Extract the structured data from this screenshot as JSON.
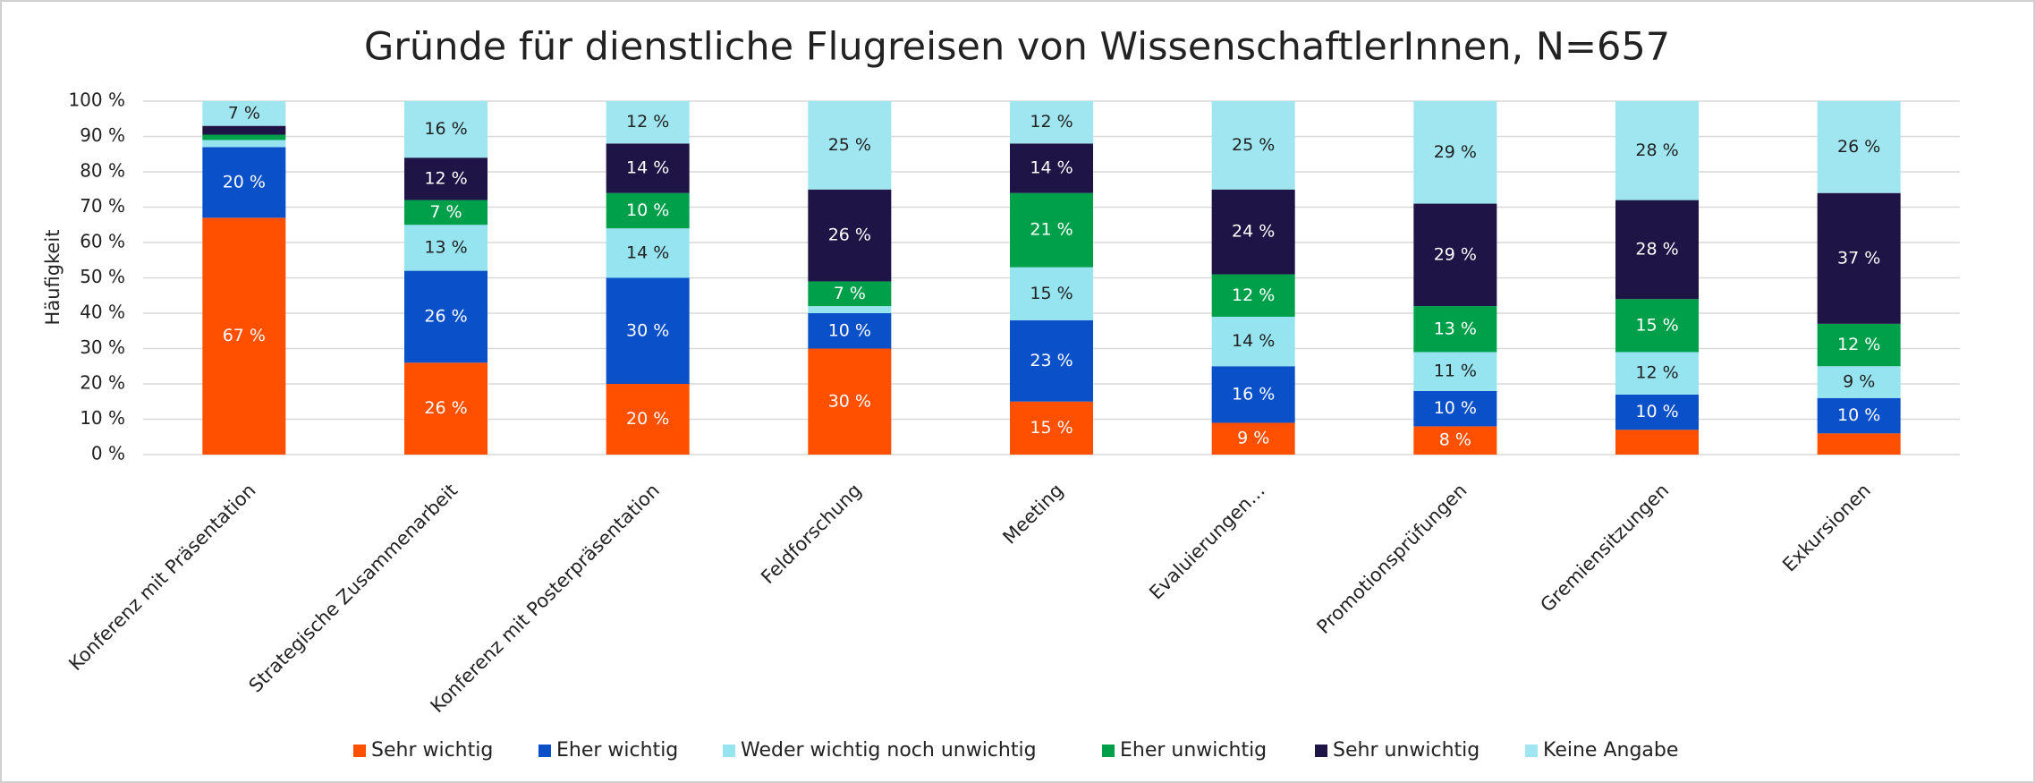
{
  "chart_data": {
    "type": "stacked_bar",
    "title": "Gründe für dienstliche Flugreisen von WissenschaftlerInnen, N=657",
    "y_label": "Häufigkeit",
    "categories": [
      "Konferenz mit Präsentation",
      "Strategische Zusammenarbeit",
      "Konferenz mit Posterpräsentation",
      "Feldforschung",
      "Meeting",
      "Evaluierungen…",
      "Promotionsprüfungen",
      "Gremiensitzungen",
      "Exkursionen"
    ],
    "series": [
      {
        "name": "Sehr wichtig",
        "color": "#ff5000",
        "values": [
          67,
          26,
          20,
          30,
          15,
          9,
          8,
          7,
          6
        ],
        "value_labels": [
          "67 %",
          "26 %",
          "20 %",
          "30 %",
          "15 %",
          "9 %",
          "8 %",
          null,
          null
        ]
      },
      {
        "name": "Eher wichtig",
        "color": "#0a50c8",
        "values": [
          20,
          26,
          30,
          10,
          23,
          16,
          10,
          10,
          10
        ],
        "value_labels": [
          "20 %",
          "26 %",
          "30 %",
          "10 %",
          "23 %",
          "16 %",
          "10 %",
          "10 %",
          "10 %"
        ]
      },
      {
        "name": "Weder wichtig noch unwichtig",
        "color": "#96e4f0",
        "values": [
          2,
          13,
          14,
          2,
          15,
          14,
          11,
          12,
          9
        ],
        "value_labels": [
          null,
          "13 %",
          "14 %",
          null,
          "15 %",
          "14 %",
          "11 %",
          "12 %",
          "9 %"
        ]
      },
      {
        "name": "Eher unwichtig",
        "color": "#00a04b",
        "values": [
          1.5,
          7,
          10,
          7,
          21,
          12,
          13,
          15,
          12
        ],
        "value_labels": [
          null,
          "7 %",
          "10 %",
          "7 %",
          "21 %",
          "12 %",
          "13 %",
          "15 %",
          "12 %"
        ]
      },
      {
        "name": "Sehr unwichtig",
        "color": "#1e1446",
        "values": [
          2.5,
          12,
          14,
          26,
          14,
          24,
          29,
          28,
          37
        ],
        "value_labels": [
          null,
          "12 %",
          "14 %",
          "26 %",
          "14 %",
          "24 %",
          "29 %",
          "28 %",
          "37 %"
        ]
      },
      {
        "name": "Keine Angabe",
        "color": "#a0e6f0",
        "values": [
          7,
          16,
          12,
          25,
          12,
          25,
          29,
          28,
          26
        ],
        "value_labels": [
          "7 %",
          "16 %",
          "12 %",
          "25 %",
          "12 %",
          "25 %",
          "29 %",
          "28 %",
          "26 %"
        ]
      }
    ],
    "ylim": [
      0,
      100
    ],
    "yticks": [
      {
        "value": 0,
        "label": "0 %"
      },
      {
        "value": 10,
        "label": "10 %"
      },
      {
        "value": 20,
        "label": "20 %"
      },
      {
        "value": 30,
        "label": "30 %"
      },
      {
        "value": 40,
        "label": "40 %"
      },
      {
        "value": 50,
        "label": "50 %"
      },
      {
        "value": 60,
        "label": "60 %"
      },
      {
        "value": 70,
        "label": "70 %"
      },
      {
        "value": 80,
        "label": "80 %"
      },
      {
        "value": 90,
        "label": "90 %"
      },
      {
        "value": 100,
        "label": "100 %"
      }
    ],
    "grid": true,
    "legend": "bottom"
  }
}
